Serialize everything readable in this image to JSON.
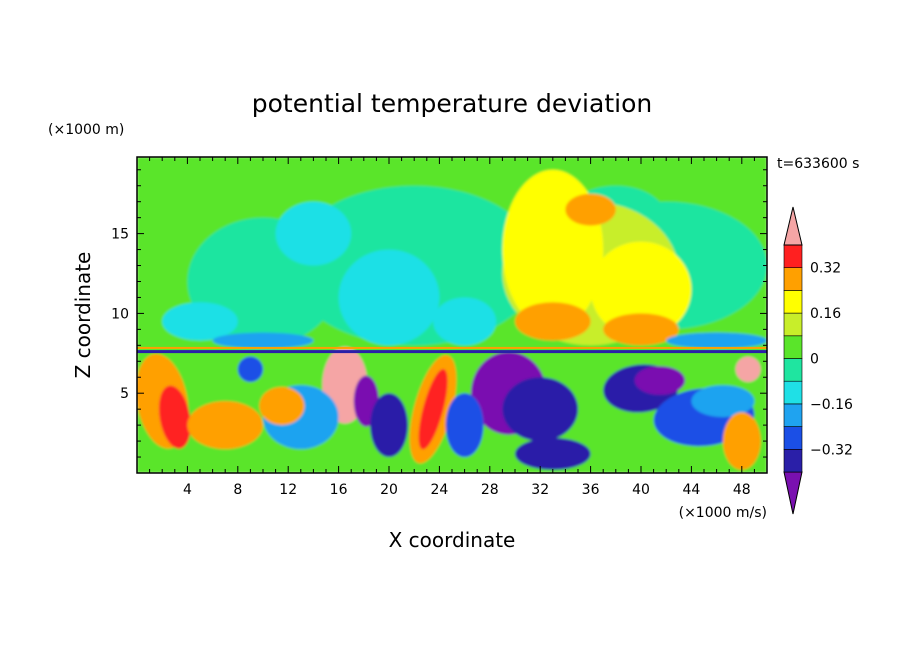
{
  "chart_data": {
    "type": "heatmap",
    "title": "potential temperature deviation",
    "xlabel": "X coordinate",
    "ylabel": "Z coordinate",
    "x_unit": "(×1000 m/s)",
    "y_unit": "(×1000 m)",
    "time_label": "t=633600 s",
    "xlim": [
      0,
      50
    ],
    "ylim": [
      0,
      19.8
    ],
    "xticks": [
      4,
      8,
      12,
      16,
      20,
      24,
      28,
      32,
      36,
      40,
      44,
      48
    ],
    "yticks": [
      5,
      10,
      15
    ],
    "colorbar": {
      "levels": [
        -0.4,
        -0.32,
        -0.24,
        -0.16,
        -0.08,
        0,
        0.08,
        0.16,
        0.24,
        0.32,
        0.4
      ],
      "tick_labels": [
        "0.32",
        "0.16",
        "0",
        "−0.16",
        "−0.32"
      ],
      "tick_values": [
        0.32,
        0.16,
        0,
        -0.16,
        -0.32
      ],
      "colors": [
        "#7a10b0",
        "#2a1fa8",
        "#1b4fe6",
        "#1fa3f0",
        "#1fe0e6",
        "#1fe5a0",
        "#5ae52a",
        "#c8ee2a",
        "#ffff00",
        "#ffa000",
        "#ff2020",
        "#f5a5a5"
      ],
      "extend": "both"
    }
  }
}
